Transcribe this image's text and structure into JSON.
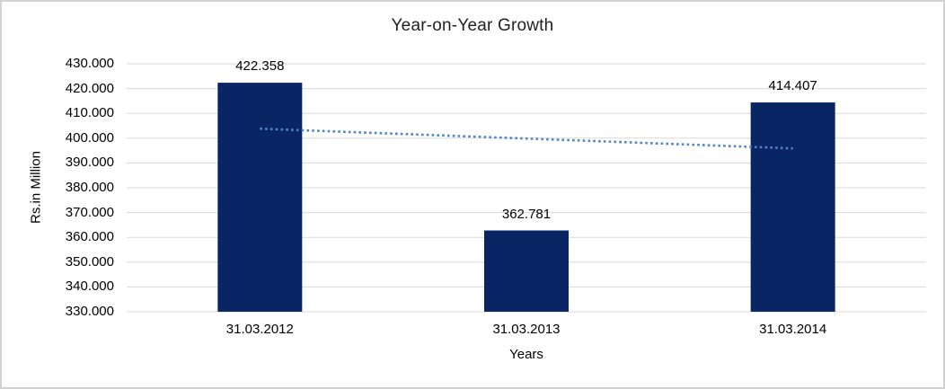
{
  "window": {
    "background": "#ffffff",
    "frame_border_color": "#d2d2d2"
  },
  "chart_data": {
    "type": "bar",
    "title": "Year-on-Year Growth",
    "xlabel": "Years",
    "ylabel": "Rs.in Million",
    "categories": [
      "31.03.2012",
      "31.03.2013",
      "31.03.2014"
    ],
    "values": [
      422.358,
      362.781,
      414.407
    ],
    "data_labels": [
      "422.358",
      "362.781",
      "414.407"
    ],
    "ylim": [
      330,
      430
    ],
    "ytick_step": 10,
    "ytick_labels": [
      "330.000",
      "340.000",
      "350.000",
      "360.000",
      "370.000",
      "380.000",
      "390.000",
      "400.000",
      "410.000",
      "420.000",
      "430.000"
    ],
    "grid": true,
    "legend": false,
    "trendline": {
      "type": "linear",
      "style": "dotted",
      "start_value": 403.82,
      "end_value": 395.87,
      "color": "#4f86c6"
    },
    "colors": {
      "bar": "#0a2563",
      "gridline": "#d9d9d9",
      "title_text": "#212121",
      "axis_text": "#000000"
    }
  }
}
